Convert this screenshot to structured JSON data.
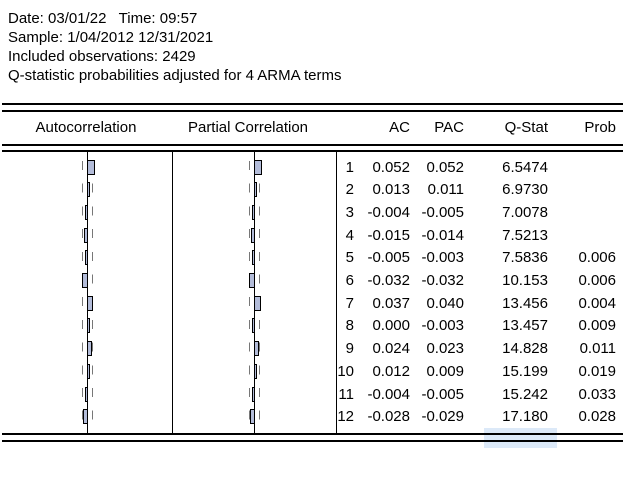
{
  "colors": {
    "background": "#ffffff",
    "text": "#000000",
    "rule_lines": "#000000",
    "bar_fill": "#b3bcd9",
    "bar_border": "#000000",
    "dashed_band": "#777777",
    "selection_highlight": "#dce9f8"
  },
  "info": {
    "lines": [
      "Date: 03/01/22   Time: 09:57",
      "Sample: 1/04/2012 12/31/2021",
      "Included observations: 2429",
      "Q-statistic probabilities adjusted for 4 ARMA terms"
    ]
  },
  "table": {
    "columns": [
      "Autocorrelation",
      "Partial Correlation",
      "AC",
      "PAC",
      "Q-Stat",
      "Prob"
    ],
    "rows": [
      {
        "lag": "1",
        "ac": "0.052",
        "pac": "0.052",
        "qstat": "6.5474",
        "prob": ""
      },
      {
        "lag": "2",
        "ac": "0.013",
        "pac": "0.011",
        "qstat": "6.9730",
        "prob": ""
      },
      {
        "lag": "3",
        "ac": "-0.004",
        "pac": "-0.005",
        "qstat": "7.0078",
        "prob": ""
      },
      {
        "lag": "4",
        "ac": "-0.015",
        "pac": "-0.014",
        "qstat": "7.5213",
        "prob": ""
      },
      {
        "lag": "5",
        "ac": "-0.005",
        "pac": "-0.003",
        "qstat": "7.5836",
        "prob": "0.006"
      },
      {
        "lag": "6",
        "ac": "-0.032",
        "pac": "-0.032",
        "qstat": "10.153",
        "prob": "0.006"
      },
      {
        "lag": "7",
        "ac": "0.037",
        "pac": "0.040",
        "qstat": "13.456",
        "prob": "0.004"
      },
      {
        "lag": "8",
        "ac": "0.000",
        "pac": "-0.003",
        "qstat": "13.457",
        "prob": "0.009"
      },
      {
        "lag": "9",
        "ac": "0.024",
        "pac": "0.023",
        "qstat": "14.828",
        "prob": "0.011"
      },
      {
        "lag": "10",
        "ac": "0.012",
        "pac": "0.009",
        "qstat": "15.199",
        "prob": "0.019"
      },
      {
        "lag": "11",
        "ac": "-0.004",
        "pac": "-0.005",
        "qstat": "15.242",
        "prob": "0.033"
      },
      {
        "lag": "12",
        "ac": "-0.028",
        "pac": "-0.029",
        "qstat": "17.180",
        "prob": "0.028"
      }
    ]
  },
  "chart_data": {
    "type": "bar",
    "orientation": "horizontal",
    "title": "Correlogram",
    "categories": [
      1,
      2,
      3,
      4,
      5,
      6,
      7,
      8,
      9,
      10,
      11,
      12
    ],
    "series": [
      {
        "name": "Autocorrelation",
        "values": [
          0.052,
          0.013,
          -0.004,
          -0.015,
          -0.005,
          -0.032,
          0.037,
          0.0,
          0.024,
          0.012,
          -0.004,
          -0.028
        ]
      },
      {
        "name": "Partial Correlation",
        "values": [
          0.052,
          0.011,
          -0.005,
          -0.014,
          -0.003,
          -0.032,
          0.04,
          -0.003,
          0.023,
          0.009,
          -0.005,
          -0.029
        ]
      }
    ],
    "annotations": "dashed vertical lines mark approximate +/-2 standard error confidence bands around zero",
    "xlim": [
      -0.75,
      0.75
    ],
    "grid": false,
    "legend_position": "column headers"
  }
}
